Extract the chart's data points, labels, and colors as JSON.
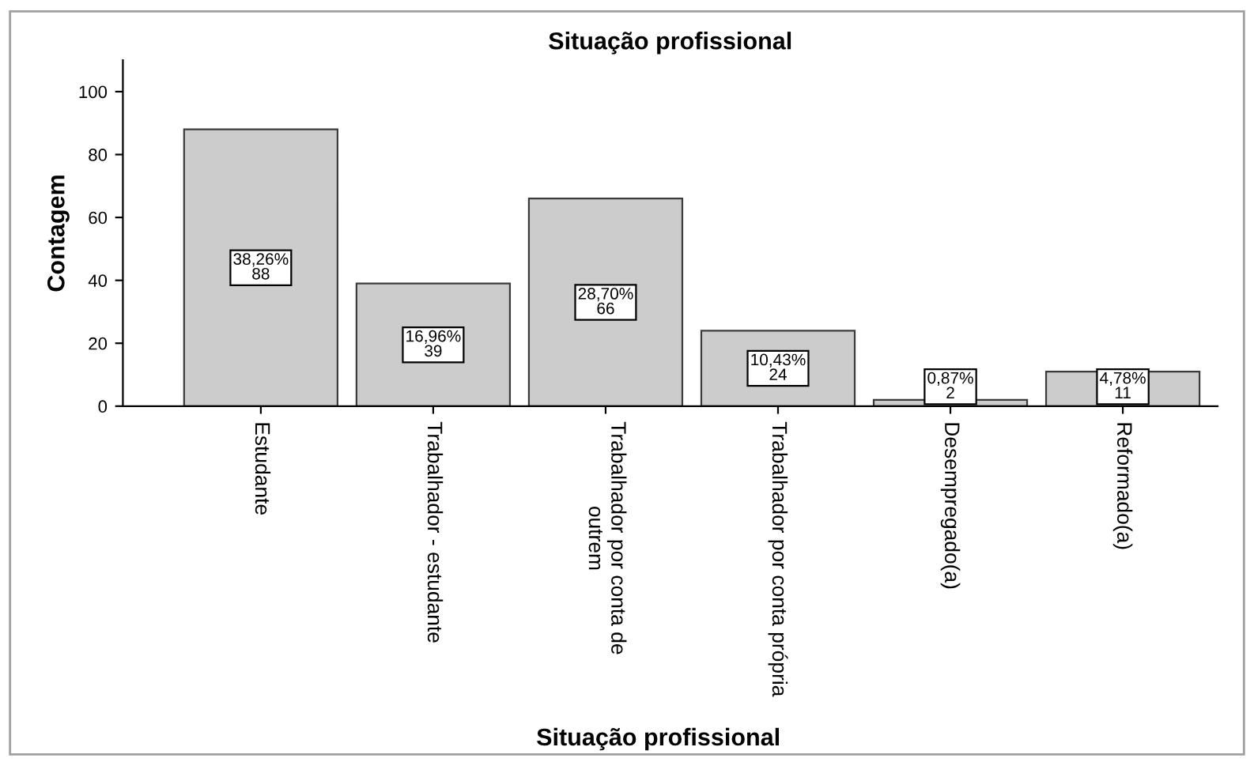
{
  "chart_data": {
    "type": "bar",
    "title": "Situação profissional",
    "xlabel": "Situação profissional",
    "ylabel": "Contagem",
    "categories": [
      "Estudante",
      "Trabalhador - estudante",
      "Trabalhador por conta de\noutrem",
      "Trabalhador por conta própria",
      "Desempregado(a)",
      "Reformado(a)"
    ],
    "values": [
      88,
      39,
      66,
      24,
      2,
      11
    ],
    "value_labels": [
      "38,26%\n88",
      "16,96%\n39",
      "28,70%\n66",
      "10,43%\n24",
      "0,87%\n2",
      "4,78%\n11"
    ],
    "color": "#cccccc",
    "ylim": [
      0,
      110
    ],
    "yticks": [
      0,
      20,
      40,
      60,
      80,
      100
    ],
    "grid": false,
    "legend": false
  }
}
